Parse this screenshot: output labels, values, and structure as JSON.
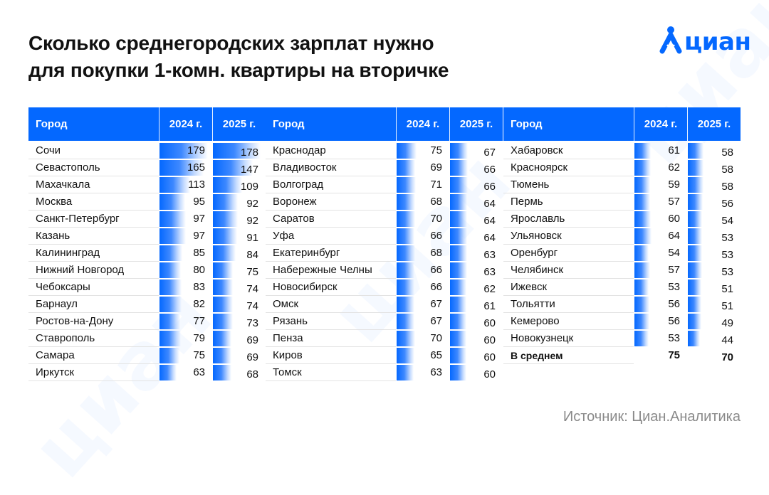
{
  "title_lines": [
    "Сколько среднегородских зарплат нужно",
    "для покупки 1-комн. квартиры на вторичке"
  ],
  "logo_text": "циан",
  "source": "Источник: Циан.Аналитика",
  "colors": {
    "accent": "#0468ff",
    "header_text": "#ffffff",
    "text": "#111111",
    "source": "#8a8a8a"
  },
  "chart_data": {
    "type": "table",
    "columns": [
      "Город",
      "2024 г.",
      "2025 г."
    ],
    "max_value": 180,
    "rows": [
      {
        "city": "Сочи",
        "y2024": 179,
        "y2025": 178
      },
      {
        "city": "Севастополь",
        "y2024": 165,
        "y2025": 147
      },
      {
        "city": "Махачкала",
        "y2024": 113,
        "y2025": 109
      },
      {
        "city": "Москва",
        "y2024": 95,
        "y2025": 92
      },
      {
        "city": "Санкт-Петербург",
        "y2024": 97,
        "y2025": 92
      },
      {
        "city": "Казань",
        "y2024": 97,
        "y2025": 91
      },
      {
        "city": "Калининград",
        "y2024": 85,
        "y2025": 84
      },
      {
        "city": "Нижний Новгород",
        "y2024": 80,
        "y2025": 75
      },
      {
        "city": "Чебоксары",
        "y2024": 83,
        "y2025": 74
      },
      {
        "city": "Барнаул",
        "y2024": 82,
        "y2025": 74
      },
      {
        "city": "Ростов-на-Дону",
        "y2024": 77,
        "y2025": 73
      },
      {
        "city": "Ставрополь",
        "y2024": 79,
        "y2025": 69
      },
      {
        "city": "Самара",
        "y2024": 75,
        "y2025": 69
      },
      {
        "city": "Иркутск",
        "y2024": 63,
        "y2025": 68
      },
      {
        "city": "Краснодар",
        "y2024": 75,
        "y2025": 67
      },
      {
        "city": "Владивосток",
        "y2024": 69,
        "y2025": 66
      },
      {
        "city": "Волгоград",
        "y2024": 71,
        "y2025": 66
      },
      {
        "city": "Воронеж",
        "y2024": 68,
        "y2025": 64
      },
      {
        "city": "Саратов",
        "y2024": 70,
        "y2025": 64
      },
      {
        "city": "Уфа",
        "y2024": 66,
        "y2025": 64
      },
      {
        "city": "Екатеринбург",
        "y2024": 68,
        "y2025": 63
      },
      {
        "city": "Набережные Челны",
        "y2024": 66,
        "y2025": 63
      },
      {
        "city": "Новосибирск",
        "y2024": 66,
        "y2025": 62
      },
      {
        "city": "Омск",
        "y2024": 67,
        "y2025": 61
      },
      {
        "city": "Рязань",
        "y2024": 67,
        "y2025": 60
      },
      {
        "city": "Пенза",
        "y2024": 70,
        "y2025": 60
      },
      {
        "city": "Киров",
        "y2024": 65,
        "y2025": 60
      },
      {
        "city": "Томск",
        "y2024": 63,
        "y2025": 60
      },
      {
        "city": "Хабаровск",
        "y2024": 61,
        "y2025": 58
      },
      {
        "city": "Красноярск",
        "y2024": 62,
        "y2025": 58
      },
      {
        "city": "Тюмень",
        "y2024": 59,
        "y2025": 58
      },
      {
        "city": "Пермь",
        "y2024": 57,
        "y2025": 56
      },
      {
        "city": "Ярославль",
        "y2024": 60,
        "y2025": 54
      },
      {
        "city": "Ульяновск",
        "y2024": 64,
        "y2025": 53
      },
      {
        "city": "Оренбург",
        "y2024": 54,
        "y2025": 53
      },
      {
        "city": "Челябинск",
        "y2024": 57,
        "y2025": 53
      },
      {
        "city": "Ижевск",
        "y2024": 53,
        "y2025": 51
      },
      {
        "city": "Тольятти",
        "y2024": 56,
        "y2025": 51
      },
      {
        "city": "Кемерово",
        "y2024": 56,
        "y2025": 49
      },
      {
        "city": "Новокузнецк",
        "y2024": 53,
        "y2025": 44
      }
    ],
    "total": {
      "city": "В среднем",
      "y2024": 75,
      "y2025": 70
    }
  }
}
